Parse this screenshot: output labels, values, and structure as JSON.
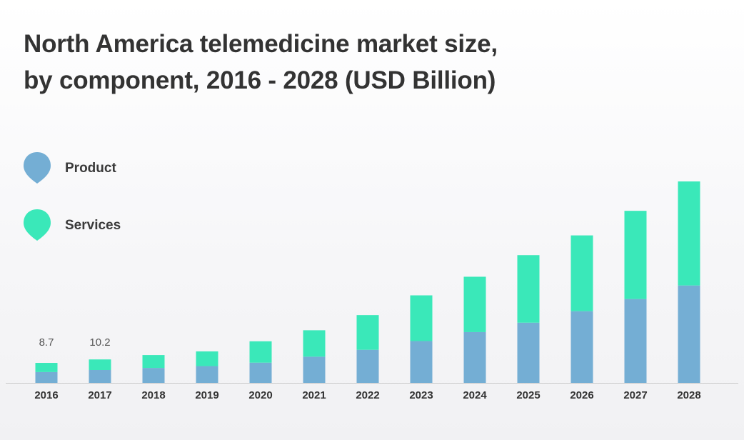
{
  "title_line1": "North America telemedicine market size,",
  "title_line2": "by component, 2016 - 2028 (USD Billion)",
  "colors": {
    "product": "#74aed4",
    "services": "#3ae8b9",
    "text": "#333333",
    "baseline": "#c9c9c9"
  },
  "legend": [
    {
      "name": "Product",
      "icon": "pin-marker-icon"
    },
    {
      "name": "Services",
      "icon": "pin-marker-icon"
    }
  ],
  "chart_data": {
    "type": "bar",
    "stacked": true,
    "categories": [
      "2016",
      "2017",
      "2018",
      "2019",
      "2020",
      "2021",
      "2022",
      "2023",
      "2024",
      "2025",
      "2026",
      "2027",
      "2028"
    ],
    "series": [
      {
        "name": "Product",
        "values": [
          4.7,
          5.6,
          6.5,
          7.3,
          8.8,
          11.4,
          14.4,
          18.2,
          22.1,
          26.2,
          31.2,
          36.5,
          42.4
        ]
      },
      {
        "name": "Services",
        "values": [
          4.0,
          4.6,
          5.6,
          6.4,
          9.3,
          11.5,
          15.1,
          19.9,
          24.1,
          29.4,
          33.0,
          38.4,
          45.3
        ]
      }
    ],
    "totals": [
      8.7,
      10.2,
      12.1,
      13.7,
      18.1,
      22.9,
      29.5,
      38.1,
      46.2,
      55.6,
      64.2,
      74.9,
      87.7
    ],
    "data_labels": [
      {
        "category": "2016",
        "text": "8.7"
      },
      {
        "category": "2017",
        "text": "10.2"
      }
    ],
    "legend_position": "left",
    "grid": false,
    "y_axis_visible": false,
    "ylim": [
      0,
      87.7
    ]
  }
}
